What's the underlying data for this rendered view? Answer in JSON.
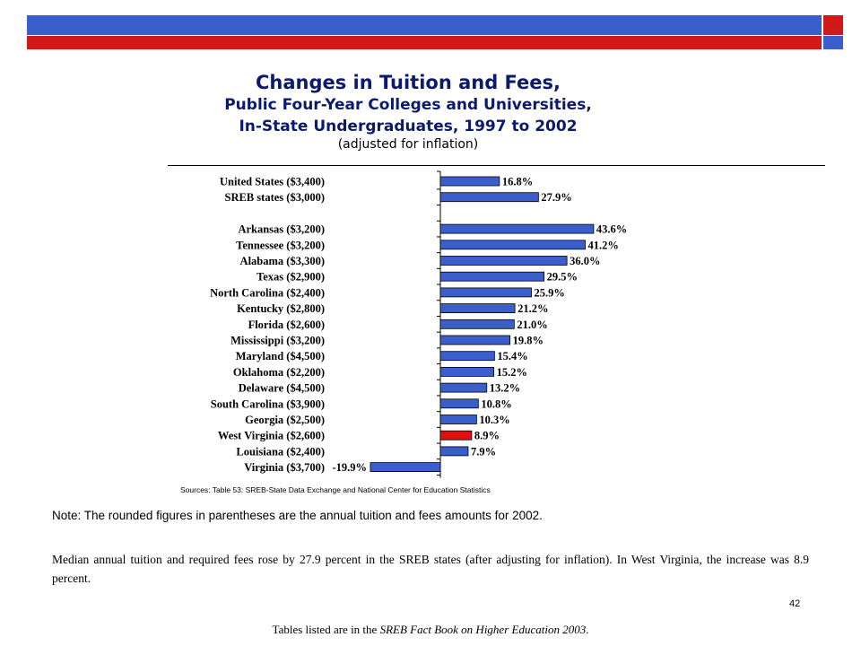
{
  "title_line1": "Changes in Tuition and Fees,",
  "title_line2": "Public Four-Year Colleges and Universities,",
  "title_line3": "In-State Undergraduates, 1997 to 2002",
  "title_line4": "(adjusted for inflation)",
  "sources": "Sources: Table 53: SREB-State Data Exchange and National Center for Education Statistics",
  "note": "Note: The rounded figures in parentheses are the annual tuition and fees amounts for 2002.",
  "paragraph": "Median annual tuition and required fees rose by 27.9 percent in the SREB states (after adjusting for inflation). In West Virginia, the increase was 8.9 percent.",
  "page_number": "42",
  "footer_prefix": "Tables listed are in the ",
  "footer_italic": "SREB Fact Book on Higher Education 2003",
  "footer_suffix": ".",
  "colors": {
    "bar": "#3a5fcd",
    "highlight": "#e01010",
    "header_blue": "#3a5fcd",
    "header_red": "#d01a1a"
  },
  "chart_data": {
    "type": "bar",
    "orientation": "horizontal",
    "categories": [
      "United States ($3,400)",
      "SREB states ($3,000)",
      "Arkansas ($3,200)",
      "Tennessee ($3,200)",
      "Alabama ($3,300)",
      "Texas ($2,900)",
      "North Carolina ($2,400)",
      "Kentucky ($2,800)",
      "Florida ($2,600)",
      "Mississippi ($3,200)",
      "Maryland ($4,500)",
      "Oklahoma ($2,200)",
      "Delaware ($4,500)",
      "South Carolina ($3,900)",
      "Georgia ($2,500)",
      "West Virginia ($2,600)",
      "Louisiana ($2,400)",
      "Virginia ($3,700)"
    ],
    "values": [
      16.8,
      27.9,
      43.6,
      41.2,
      36.0,
      29.5,
      25.9,
      21.2,
      21.0,
      19.8,
      15.4,
      15.2,
      13.2,
      10.8,
      10.3,
      8.9,
      7.9,
      -19.9
    ],
    "value_labels": [
      "16.8%",
      "27.9%",
      "43.6%",
      "41.2%",
      "36.0%",
      "29.5%",
      "25.9%",
      "21.2%",
      "21.0%",
      "19.8%",
      "15.4%",
      "15.2%",
      "13.2%",
      "10.8%",
      "10.3%",
      "8.9%",
      "7.9%",
      "-19.9%"
    ],
    "highlight": "West Virginia ($2,600)",
    "gap_after": "SREB states ($3,000)",
    "xlim": [
      -20,
      45
    ]
  }
}
